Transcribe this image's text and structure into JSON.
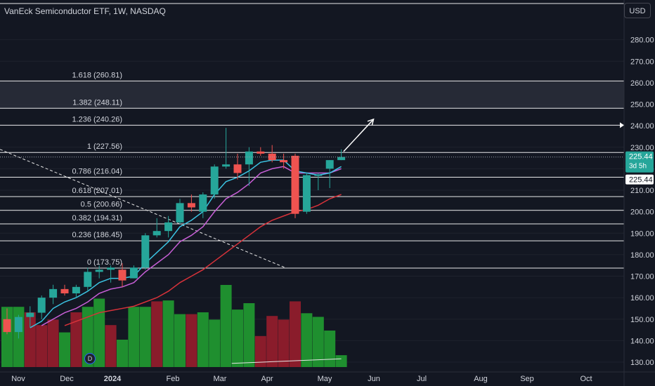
{
  "header": {
    "title": "VanEck Semiconductor ETF, 1W, NASDAQ",
    "currency": "USD"
  },
  "colors": {
    "background": "#131722",
    "up": "#26a69a",
    "down": "#ef5350",
    "volume_up": "#1f8f2f",
    "volume_down": "#8a1c2b",
    "ema_fast": "#3bc4e3",
    "ema_slow": "#c75fd6",
    "sma_long": "#d8323a",
    "fib_line": "#e8e8ea",
    "grid": "#1e222d"
  },
  "chart_data": {
    "type": "candlestick",
    "y_range": [
      127,
      300
    ],
    "y_ticks": [
      "130.00",
      "140.00",
      "150.00",
      "160.00",
      "170.00",
      "180.00",
      "190.00",
      "200.00",
      "210.00",
      "220.00",
      "230.00",
      "240.00",
      "250.00",
      "260.00",
      "270.00",
      "280.00"
    ],
    "x_ticks": [
      "Nov",
      "Dec",
      "2024",
      "Feb",
      "Mar",
      "Apr",
      "May",
      "Jun",
      "Jul",
      "Aug",
      "Sep",
      "Oct"
    ],
    "current_price": "225.44",
    "current_price_countdown": "3d 5h",
    "candles": [
      {
        "o": 150,
        "h": 155,
        "l": 143,
        "c": 144
      },
      {
        "o": 144,
        "h": 152,
        "l": 141,
        "c": 151
      },
      {
        "o": 151,
        "h": 156,
        "l": 146,
        "c": 153
      },
      {
        "o": 153,
        "h": 161,
        "l": 150,
        "c": 160
      },
      {
        "o": 160,
        "h": 166,
        "l": 157,
        "c": 164
      },
      {
        "o": 164,
        "h": 166,
        "l": 161,
        "c": 162
      },
      {
        "o": 162,
        "h": 166,
        "l": 160,
        "c": 165
      },
      {
        "o": 165,
        "h": 174,
        "l": 163,
        "c": 172
      },
      {
        "o": 172,
        "h": 175,
        "l": 169,
        "c": 173
      },
      {
        "o": 173,
        "h": 175,
        "l": 167,
        "c": 174
      },
      {
        "o": 173,
        "h": 176,
        "l": 165,
        "c": 168
      },
      {
        "o": 169,
        "h": 175,
        "l": 169,
        "c": 174
      },
      {
        "o": 174,
        "h": 190,
        "l": 173,
        "c": 189
      },
      {
        "o": 189,
        "h": 197,
        "l": 188,
        "c": 191
      },
      {
        "o": 191,
        "h": 198,
        "l": 188,
        "c": 195
      },
      {
        "o": 195,
        "h": 206,
        "l": 194,
        "c": 204
      },
      {
        "o": 204,
        "h": 208,
        "l": 200,
        "c": 202
      },
      {
        "o": 200,
        "h": 209,
        "l": 197,
        "c": 208
      },
      {
        "o": 208,
        "h": 222,
        "l": 206,
        "c": 221
      },
      {
        "o": 221,
        "h": 239,
        "l": 220,
        "c": 222
      },
      {
        "o": 222,
        "h": 227,
        "l": 215,
        "c": 218
      },
      {
        "o": 222,
        "h": 230,
        "l": 212,
        "c": 228
      },
      {
        "o": 228,
        "h": 230,
        "l": 226,
        "c": 227
      },
      {
        "o": 227,
        "h": 231,
        "l": 223,
        "c": 224
      },
      {
        "o": 224,
        "h": 227,
        "l": 220,
        "c": 223
      },
      {
        "o": 226,
        "h": 227,
        "l": 197,
        "c": 199
      },
      {
        "o": 200,
        "h": 218,
        "l": 199,
        "c": 217
      },
      {
        "o": 217,
        "h": 218,
        "l": 210,
        "c": 217
      },
      {
        "o": 220,
        "h": 224,
        "l": 211,
        "c": 224
      },
      {
        "o": 224,
        "h": 229,
        "l": 224,
        "c": 225.44
      }
    ],
    "volume_rel": [
      0.66,
      0.66,
      0.6,
      0.46,
      0.52,
      0.38,
      0.6,
      0.66,
      0.75,
      0.46,
      0.3,
      0.66,
      0.66,
      0.72,
      0.73,
      0.58,
      0.58,
      0.6,
      0.52,
      0.9,
      0.63,
      0.7,
      0.34,
      0.56,
      0.52,
      0.72,
      0.59,
      0.55,
      0.4,
      0.13
    ],
    "volume_up_flags": [
      true,
      true,
      false,
      false,
      false,
      true,
      false,
      true,
      true,
      false,
      true,
      true,
      true,
      false,
      true,
      true,
      false,
      true,
      true,
      true,
      true,
      true,
      false,
      false,
      false,
      false,
      true,
      true,
      true,
      true
    ],
    "ema_fast": [
      null,
      null,
      146,
      149,
      155,
      158,
      160,
      163,
      167,
      169,
      169,
      170,
      176,
      181,
      186,
      193,
      196,
      200,
      208,
      214,
      216,
      219,
      223,
      224,
      224,
      219,
      218,
      217,
      218,
      221
    ],
    "ema_slow": [
      null,
      null,
      null,
      147,
      150,
      153,
      155,
      158,
      162,
      164,
      165,
      167,
      172,
      176,
      180,
      186,
      189,
      193,
      200,
      206,
      209,
      213,
      218,
      220,
      221,
      218,
      218,
      218,
      218,
      220
    ],
    "sma_long": [
      null,
      null,
      null,
      null,
      null,
      147,
      149,
      151,
      153,
      154,
      155,
      156,
      158,
      160,
      163,
      167,
      170,
      173,
      177,
      181,
      185,
      189,
      193,
      196,
      198,
      200,
      201,
      203,
      206,
      208
    ],
    "fibs": [
      {
        "label": "0 (173.75)",
        "price": 173.75
      },
      {
        "label": "0.236 (186.45)",
        "price": 186.45
      },
      {
        "label": "0.382 (194.31)",
        "price": 194.31
      },
      {
        "label": "0.5 (200.66)",
        "price": 200.66
      },
      {
        "label": "0.618 (207.01)",
        "price": 207.01
      },
      {
        "label": "0.786 (216.04)",
        "price": 216.04
      },
      {
        "label": "1 (227.56)",
        "price": 227.56
      },
      {
        "label": "1.236 (240.26)",
        "price": 240.26
      },
      {
        "label": "1.382 (248.11)",
        "price": 248.11
      },
      {
        "label": "1.618 (260.81)",
        "price": 260.81
      }
    ],
    "highlight_zone": [
      248.11,
      260.81
    ],
    "trendline_down": {
      "from_index": -1,
      "from_price": 229,
      "to_index": 23.5,
      "to_price": 174
    },
    "volume_trendline": {
      "from_index": 19.5,
      "from_rel": 0.04,
      "to_index": 29,
      "to_rel": 0.09
    },
    "projection_arrow": {
      "from_index": 29.2,
      "from_price": 228,
      "to_index": 31.8,
      "to_price": 243
    }
  }
}
